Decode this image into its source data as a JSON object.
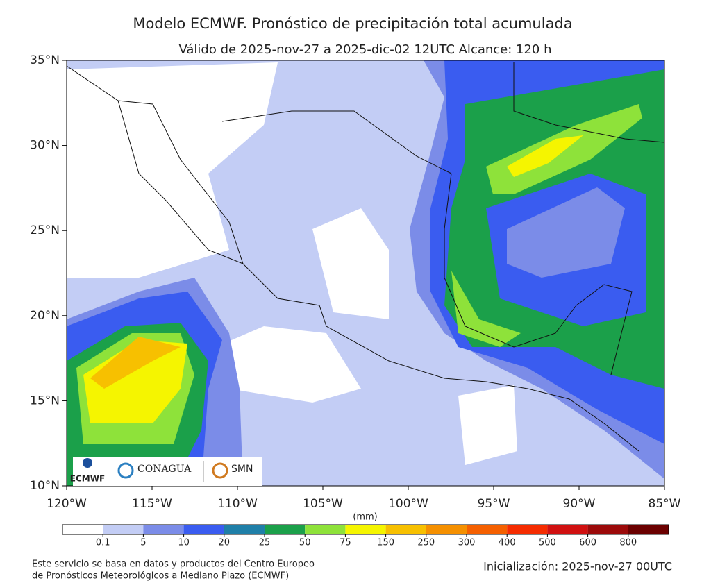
{
  "map": {
    "title": "Modelo ECMWF. Pronóstico de precipitación total acumulada",
    "subtitle": "Válido de 2025-nov-27 a 2025-dic-02 12UTC   Alcance: 120 h",
    "xlim": [
      -120,
      -85
    ],
    "ylim": [
      10,
      35
    ],
    "xticks": [
      {
        "value": -120,
        "label": "120°W"
      },
      {
        "value": -115,
        "label": "115°W"
      },
      {
        "value": -110,
        "label": "110°W"
      },
      {
        "value": -105,
        "label": "105°W"
      },
      {
        "value": -100,
        "label": "100°W"
      },
      {
        "value": -95,
        "label": "95°W"
      },
      {
        "value": -90,
        "label": "90°W"
      },
      {
        "value": -85,
        "label": "85°W"
      }
    ],
    "yticks": [
      {
        "value": 35,
        "label": "35°N"
      },
      {
        "value": 30,
        "label": "30°N"
      },
      {
        "value": 25,
        "label": "25°N"
      },
      {
        "value": 20,
        "label": "20°N"
      },
      {
        "value": 15,
        "label": "15°N"
      },
      {
        "value": 10,
        "label": "10°N"
      }
    ],
    "logos": [
      "ECMWF",
      "CONAGUA",
      "SMN"
    ]
  },
  "colorbar": {
    "unit": "(mm)",
    "levels": [
      "0.1",
      "5",
      "10",
      "20",
      "25",
      "50",
      "75",
      "150",
      "250",
      "300",
      "400",
      "500",
      "600",
      "800"
    ],
    "colors": [
      "#ffffff",
      "#c3cdf5",
      "#7b8ce8",
      "#3a5cf0",
      "#1f7fa8",
      "#1ba04a",
      "#8ee23a",
      "#f5f500",
      "#f7c000",
      "#f59000",
      "#f56000",
      "#f52c00",
      "#d01010",
      "#9c0a0a",
      "#6b0000"
    ]
  },
  "footer": {
    "source": [
      "Este servicio se basa en datos y productos del Centro Europeo",
      "de Pronósticos Meteorológicos a Mediano Plazo (ECMWF)"
    ],
    "init": "Inicialización: 2025-nov-27 00UTC"
  }
}
